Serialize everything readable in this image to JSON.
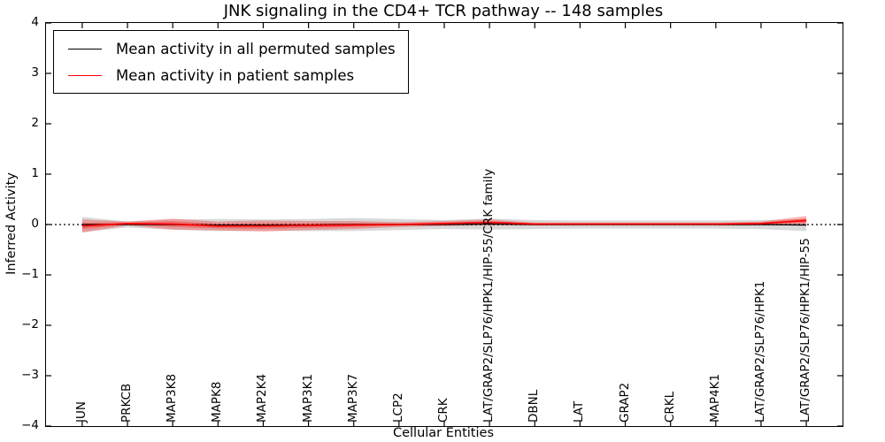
{
  "figure": {
    "title": "JNK signaling in the CD4+ TCR pathway -- 148 samples",
    "xlabel": "Cellular Entities",
    "ylabel": "Inferred Activity"
  },
  "legend": {
    "items": [
      {
        "label": "Mean activity in all permuted samples",
        "color": "#000000"
      },
      {
        "label": "Mean activity in patient samples",
        "color": "#ff0000"
      }
    ]
  },
  "chart_data": {
    "type": "line",
    "title": "JNK signaling in the CD4+ TCR pathway -- 148 samples",
    "xlabel": "Cellular Entities",
    "ylabel": "Inferred Activity",
    "ylim": [
      -4,
      4
    ],
    "yticks": [
      4,
      3,
      2,
      1,
      0,
      -1,
      -2,
      -3,
      -4
    ],
    "ytick_labels": [
      "4",
      "3",
      "2",
      "1",
      "0",
      "−1",
      "−2",
      "−3",
      "−4"
    ],
    "grid": false,
    "legend_position": "upper left",
    "zero_line": {
      "value": 0,
      "style": "dotted",
      "color": "#000000"
    },
    "categories": [
      "JUN",
      "PRKCB",
      "MAP3K8",
      "MAPK8",
      "MAP2K4",
      "MAP3K1",
      "MAP3K7",
      "LCP2",
      "CRK",
      "LAT/GRAP2/SLP76/HPK1/HIP-55/CRK family",
      "DBNL",
      "LAT",
      "GRAP2",
      "CRKL",
      "MAP4K1",
      "LAT/GRAP2/SLP76/HPK1",
      "LAT/GRAP2/SLP76/HPK1/HIP-55"
    ],
    "series": [
      {
        "name": "Mean activity in all permuted samples",
        "color": "#000000",
        "band_color": "rgba(0,0,0,0.15)",
        "values": [
          0.0,
          0.0,
          0.0,
          -0.01,
          -0.01,
          -0.01,
          0.0,
          0.0,
          0.0,
          0.01,
          0.0,
          0.0,
          0.0,
          0.0,
          0.0,
          0.0,
          -0.01
        ],
        "band": [
          0.15,
          0.06,
          0.1,
          0.12,
          0.11,
          0.12,
          0.13,
          0.11,
          0.09,
          0.11,
          0.09,
          0.08,
          0.08,
          0.08,
          0.08,
          0.09,
          0.12
        ]
      },
      {
        "name": "Mean activity in patient samples",
        "color": "#ff0000",
        "band_color": "rgba(255,0,0,0.28)",
        "values": [
          -0.03,
          0.02,
          0.01,
          -0.03,
          -0.03,
          -0.02,
          -0.01,
          0.0,
          0.02,
          0.04,
          0.01,
          0.01,
          0.01,
          0.01,
          0.01,
          0.02,
          0.08
        ],
        "band": [
          0.13,
          0.04,
          0.11,
          0.09,
          0.11,
          0.09,
          0.08,
          0.05,
          0.05,
          0.06,
          0.03,
          0.03,
          0.03,
          0.03,
          0.03,
          0.04,
          0.09
        ]
      }
    ]
  }
}
